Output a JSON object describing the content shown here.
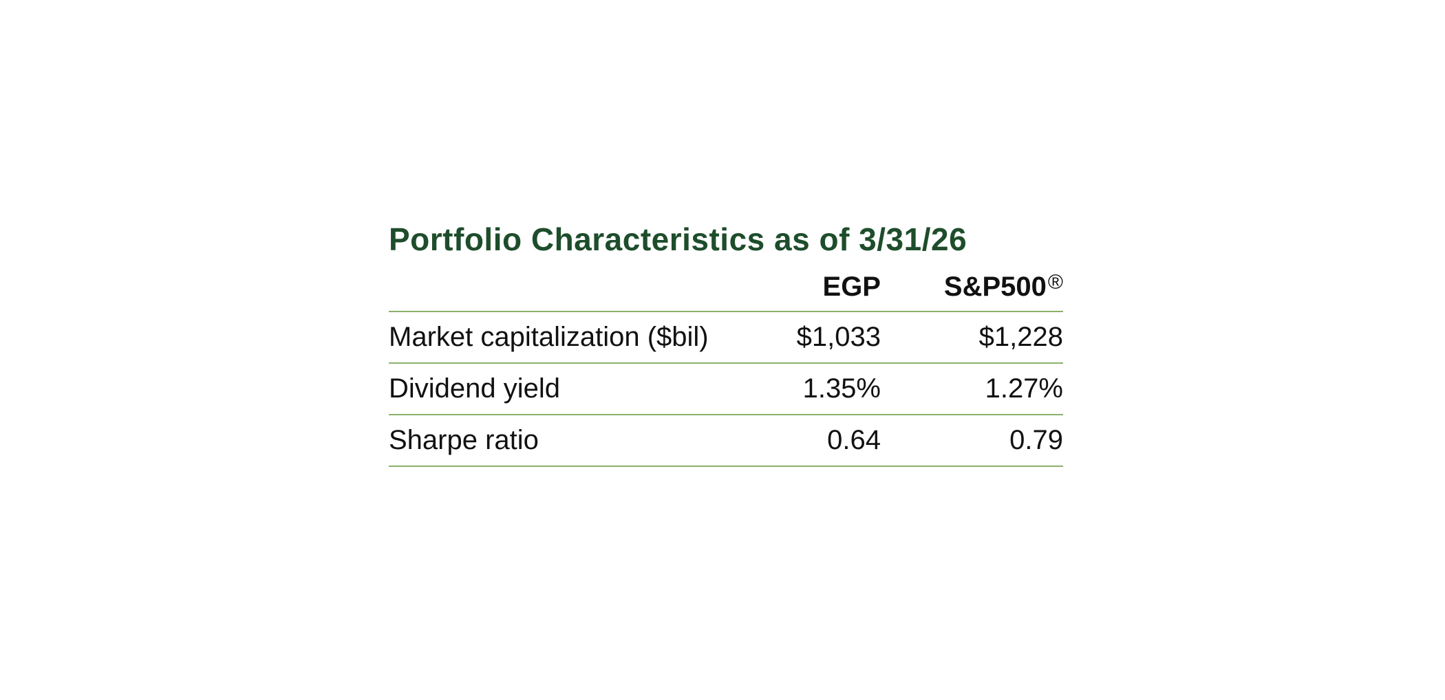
{
  "colors": {
    "title": "#1e4d2b",
    "rule": "#8ab16a",
    "text": "#111111"
  },
  "title": "Portfolio Characteristics as of 3/31/26",
  "table": {
    "headers": {
      "label": "",
      "egp": "EGP",
      "sp500": "S&P500",
      "sp500_mark": "®"
    },
    "rows": [
      {
        "label": "Market capitalization ($bil)",
        "egp": "$1,033",
        "sp500": "$1,228"
      },
      {
        "label": "Dividend yield",
        "egp": "1.35%",
        "sp500": "1.27%"
      },
      {
        "label": "Sharpe ratio",
        "egp": "0.64",
        "sp500": "0.79"
      }
    ]
  }
}
